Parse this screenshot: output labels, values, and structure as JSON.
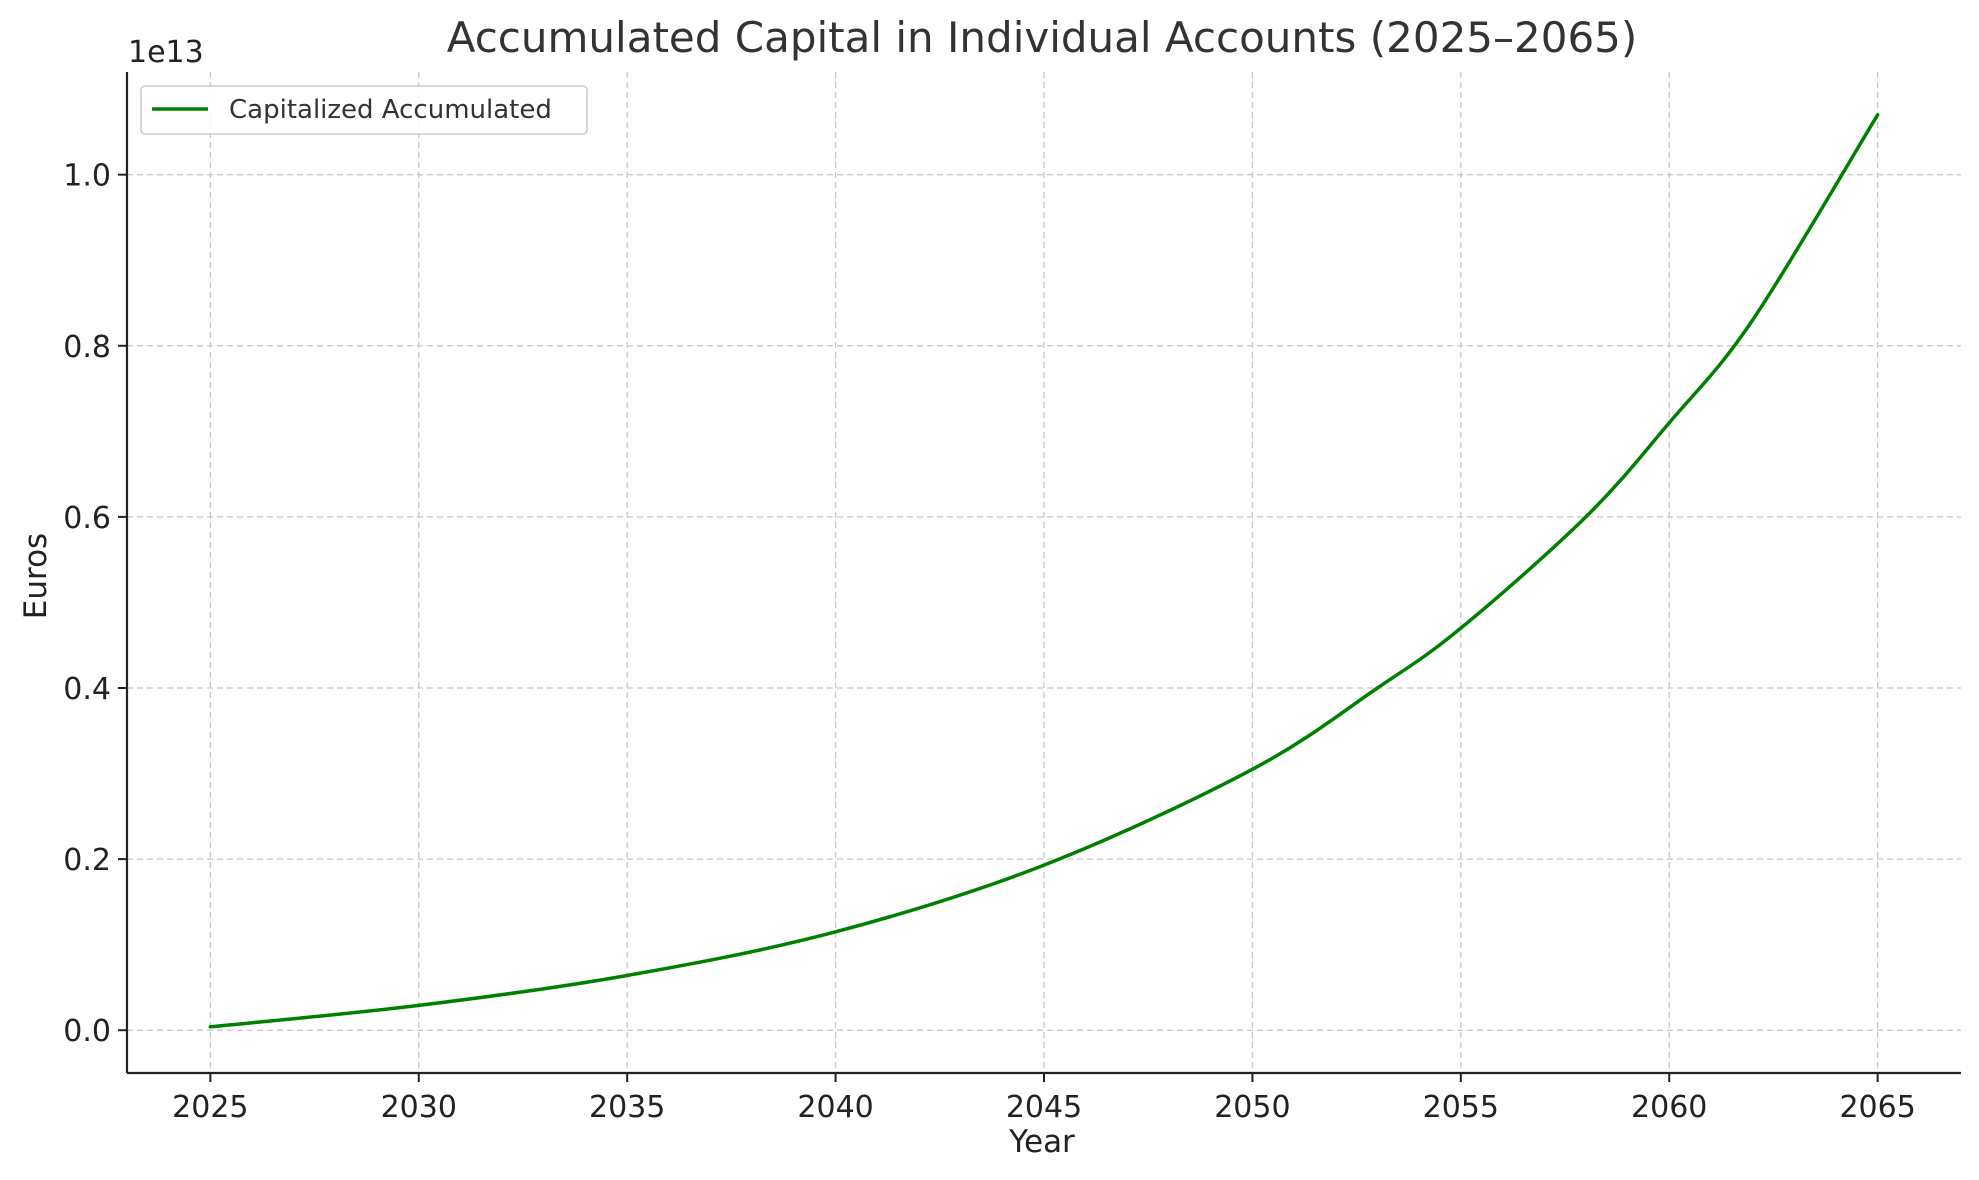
{
  "chart_data": {
    "type": "line",
    "title": "Accumulated Capital in Individual Accounts (2025–2065)",
    "xlabel": "Year",
    "ylabel": "Euros",
    "y_offset_label": "1e13",
    "y_scale_factor": 10000000000000.0,
    "xlim": [
      2023,
      2067
    ],
    "ylim": [
      -0.05,
      1.12
    ],
    "x_ticks": [
      2025,
      2030,
      2035,
      2040,
      2045,
      2050,
      2055,
      2060,
      2065
    ],
    "y_ticks": [
      0.0,
      0.2,
      0.4,
      0.6,
      0.8,
      1.0
    ],
    "y_tick_labels": [
      "0.0",
      "0.2",
      "0.4",
      "0.6",
      "0.8",
      "1.0"
    ],
    "grid": true,
    "legend_position": "top-left",
    "series": [
      {
        "name": "Capitalized Accumulated",
        "color": "#008000",
        "x": [
          2025,
          2030,
          2035,
          2040,
          2045,
          2050,
          2053,
          2055,
          2058,
          2060,
          2062,
          2065
        ],
        "y": [
          0.004,
          0.029,
          0.064,
          0.115,
          0.193,
          0.305,
          0.4,
          0.47,
          0.6,
          0.71,
          0.83,
          1.07
        ]
      }
    ]
  }
}
